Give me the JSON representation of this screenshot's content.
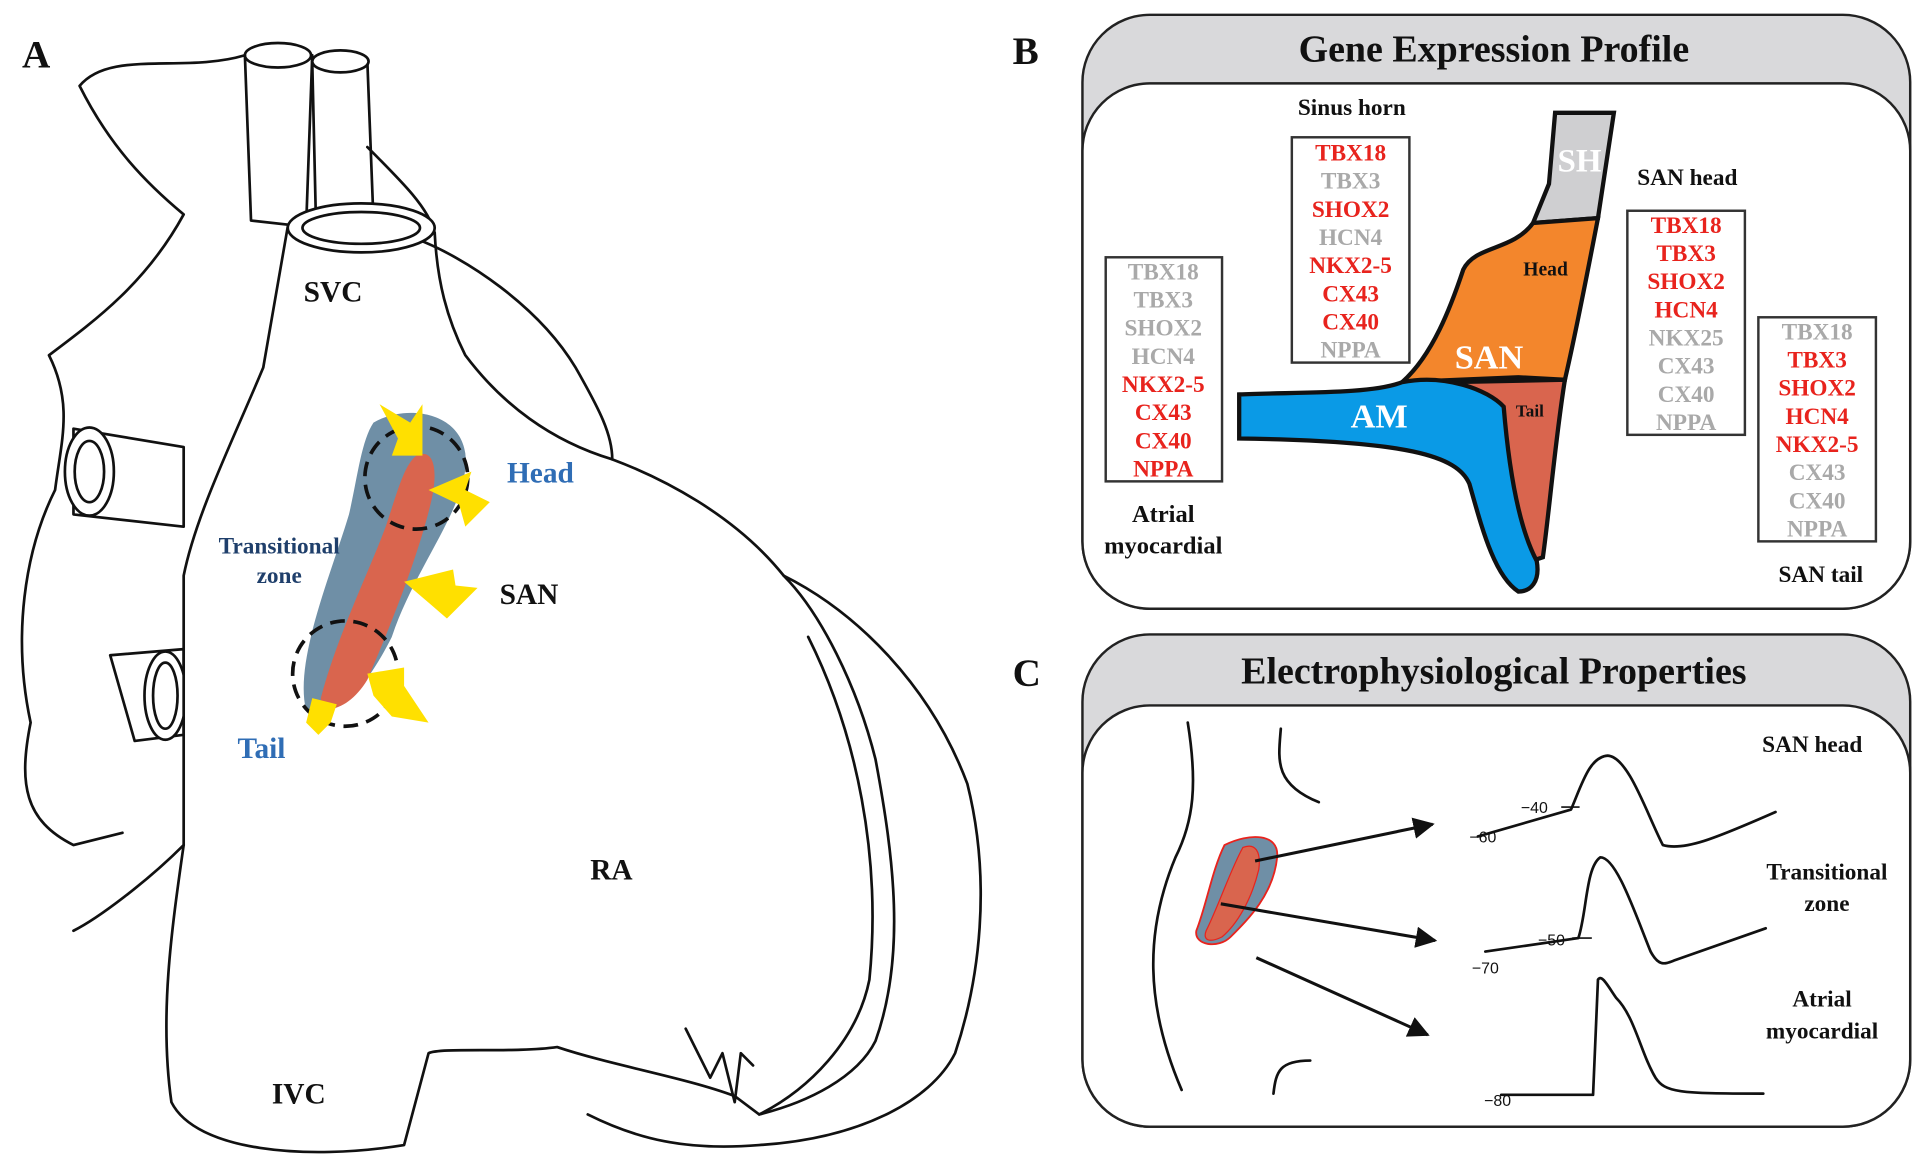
{
  "colors": {
    "expressed": "#e8231d",
    "not_expressed": "#a9a9a9",
    "am_blue": "#0a9ae6",
    "san_orange": "#f3862c",
    "tail_red": "#d9654e",
    "sh_gray": "#cfcfd1",
    "zone_bluegray": "#6f8fa6",
    "arrow_yellow": "#ffe000",
    "label_blue": "#2f6db5",
    "label_darkblue": "#1f3f6b",
    "header_gray": "#d9d9db"
  },
  "panel_a": {
    "letter": "A",
    "labels": {
      "svc": "SVC",
      "head": "Head",
      "transitional_1": "Transitional",
      "transitional_2": "zone",
      "san": "SAN",
      "tail": "Tail",
      "ra": "RA",
      "ivc": "IVC"
    }
  },
  "panel_b": {
    "letter": "B",
    "title": "Gene Expression Profile",
    "shape_labels": {
      "sh": "SH",
      "head": "Head",
      "san": "SAN",
      "am": "AM",
      "tail": "Tail"
    },
    "groups": {
      "atrial": {
        "label_1": "Atrial",
        "label_2": "myocardial",
        "genes": [
          {
            "name": "TBX18",
            "expressed": false
          },
          {
            "name": "TBX3",
            "expressed": false
          },
          {
            "name": "SHOX2",
            "expressed": false
          },
          {
            "name": "HCN4",
            "expressed": false
          },
          {
            "name": "NKX2-5",
            "expressed": true
          },
          {
            "name": "CX43",
            "expressed": true
          },
          {
            "name": "CX40",
            "expressed": true
          },
          {
            "name": "NPPA",
            "expressed": true
          }
        ]
      },
      "sinus_horn": {
        "label": "Sinus horn",
        "genes": [
          {
            "name": "TBX18",
            "expressed": true
          },
          {
            "name": "TBX3",
            "expressed": false
          },
          {
            "name": "SHOX2",
            "expressed": true
          },
          {
            "name": "HCN4",
            "expressed": false
          },
          {
            "name": "NKX2-5",
            "expressed": true
          },
          {
            "name": "CX43",
            "expressed": true
          },
          {
            "name": "CX40",
            "expressed": true
          },
          {
            "name": "NPPA",
            "expressed": false
          }
        ]
      },
      "san_head": {
        "label": "SAN head",
        "genes": [
          {
            "name": "TBX18",
            "expressed": true
          },
          {
            "name": "TBX3",
            "expressed": true
          },
          {
            "name": "SHOX2",
            "expressed": true
          },
          {
            "name": "HCN4",
            "expressed": true
          },
          {
            "name": "NKX25",
            "expressed": false
          },
          {
            "name": "CX43",
            "expressed": false
          },
          {
            "name": "CX40",
            "expressed": false
          },
          {
            "name": "NPPA",
            "expressed": false
          }
        ]
      },
      "san_tail": {
        "label": "SAN tail",
        "genes": [
          {
            "name": "TBX18",
            "expressed": false
          },
          {
            "name": "TBX3",
            "expressed": true
          },
          {
            "name": "SHOX2",
            "expressed": true
          },
          {
            "name": "HCN4",
            "expressed": true
          },
          {
            "name": "NKX2-5",
            "expressed": true
          },
          {
            "name": "CX43",
            "expressed": false
          },
          {
            "name": "CX40",
            "expressed": false
          },
          {
            "name": "NPPA",
            "expressed": false
          }
        ]
      }
    }
  },
  "panel_c": {
    "letter": "C",
    "title": "Electrophysiological Properties",
    "traces": {
      "san_head": {
        "label": "SAN head",
        "ticks": [
          "−40",
          "−60"
        ]
      },
      "transitional": {
        "label_1": "Transitional",
        "label_2": "zone",
        "ticks": [
          "−50",
          "−70"
        ]
      },
      "atrial": {
        "label_1": "Atrial",
        "label_2": "myocardial",
        "ticks": [
          "−80"
        ]
      }
    }
  }
}
